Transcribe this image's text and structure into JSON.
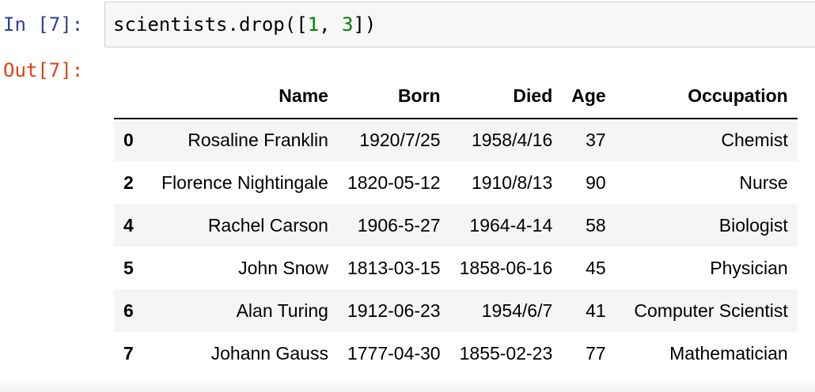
{
  "cell": {
    "in_prompt": "In [7]:",
    "out_prompt": "Out[7]:",
    "code": {
      "prefix": "scientists.drop([",
      "arg1": "1",
      "sep": ", ",
      "arg2": "3",
      "suffix": "])"
    }
  },
  "table": {
    "headers": [
      "",
      "Name",
      "Born",
      "Died",
      "Age",
      "Occupation"
    ],
    "rows": [
      [
        "0",
        "Rosaline Franklin",
        "1920/7/25",
        "1958/4/16",
        "37",
        "Chemist"
      ],
      [
        "2",
        "Florence Nightingale",
        "1820-05-12",
        "1910/8/13",
        "90",
        "Nurse"
      ],
      [
        "4",
        "Rachel Carson",
        "1906-5-27",
        "1964-4-14",
        "58",
        "Biologist"
      ],
      [
        "5",
        "John Snow",
        "1813-03-15",
        "1858-06-16",
        "45",
        "Physician"
      ],
      [
        "6",
        "Alan Turing",
        "1912-06-23",
        "1954/6/7",
        "41",
        "Computer Scientist"
      ],
      [
        "7",
        "Johann Gauss",
        "1777-04-30",
        "1855-02-23",
        "77",
        "Mathematician"
      ]
    ]
  },
  "colors": {
    "in_prompt": "#303f9f",
    "out_prompt": "#d84315",
    "number_literal": "#008000",
    "input_background": "#f7f7f7",
    "row_stripe": "#f5f5f5"
  }
}
